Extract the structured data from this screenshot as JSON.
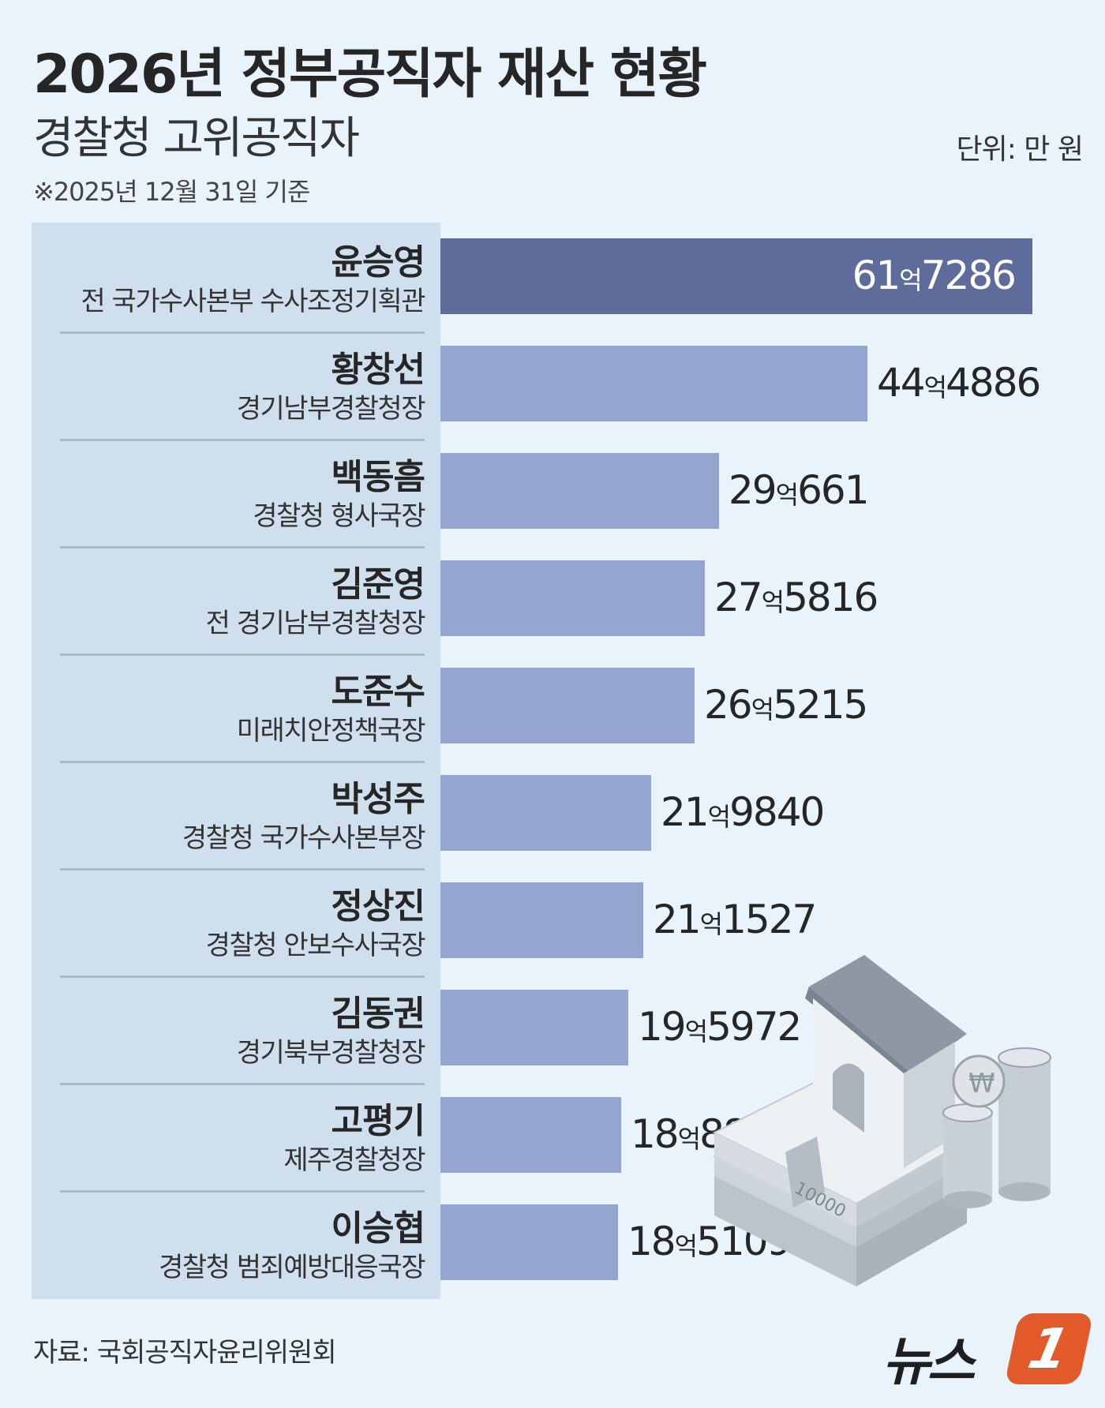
{
  "header": {
    "title": "2026년 정부공직자 재산 현황",
    "subtitle": "경찰청 고위공직자",
    "unit": "단위: 만 원",
    "basis": "※2025년 12월 31일 기준"
  },
  "colors": {
    "background": "#e8f3fb",
    "label_panel": "#cfdfee",
    "bar": "#94a5cf",
    "bar_highlight": "#5e6c9c",
    "logo_accent": "#e35a2a"
  },
  "chart_data": {
    "type": "bar",
    "orientation": "horizontal",
    "unit": "만 원",
    "categories": [
      "윤승영",
      "황창선",
      "백동흠",
      "김준영",
      "도준수",
      "박성주",
      "정상진",
      "김동권",
      "고평기",
      "이승협"
    ],
    "subtitles": [
      "전 국가수사본부 수사조정기획관",
      "경기남부경찰청장",
      "경찰청 형사국장",
      "전 경기남부경찰청장",
      "미래치안정책국장",
      "경찰청 국가수사본부장",
      "경찰청 안보수사국장",
      "경기북부경찰청장",
      "제주경찰청장",
      "경찰청 범죄예방대응국장"
    ],
    "values": [
      617286,
      444886,
      290661,
      275816,
      265215,
      219840,
      211527,
      195972,
      188868,
      185109
    ],
    "value_labels": [
      {
        "eok": "61",
        "unit": "억",
        "man": "7286"
      },
      {
        "eok": "44",
        "unit": "억",
        "man": "4886"
      },
      {
        "eok": "29",
        "unit": "억",
        "man": "661"
      },
      {
        "eok": "27",
        "unit": "억",
        "man": "5816"
      },
      {
        "eok": "26",
        "unit": "억",
        "man": "5215"
      },
      {
        "eok": "21",
        "unit": "억",
        "man": "9840"
      },
      {
        "eok": "21",
        "unit": "억",
        "man": "1527"
      },
      {
        "eok": "19",
        "unit": "억",
        "man": "5972"
      },
      {
        "eok": "18",
        "unit": "억",
        "man": "8868"
      },
      {
        "eok": "18",
        "unit": "억",
        "man": "5109"
      }
    ],
    "highlight_index": 0,
    "grid": false,
    "legend": "none"
  },
  "footer": {
    "source": "자료: 국회공직자윤리위원회",
    "logo_text": "뉴스",
    "logo_mark": "1"
  },
  "illustration": {
    "icon": "house-money-coins-icon",
    "banknote_text": "10000"
  }
}
